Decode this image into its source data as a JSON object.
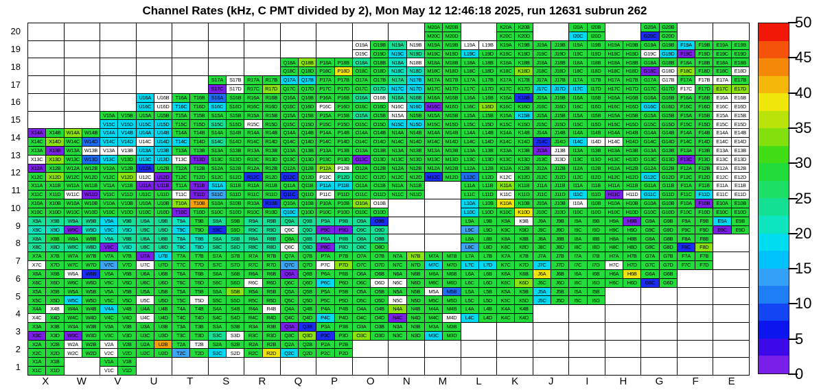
{
  "title": "Channel Rates (kHz, C PMT divided by 2), Mon May 12 12:46:18 2025, run 12631 subrun 262",
  "chart_data": {
    "type": "heatmap",
    "title": "Channel Rates (kHz, C PMT divided by 2), Mon May 12 12:46:18 2025, run 12631 subrun 262",
    "x_categories": [
      "X",
      "W",
      "V",
      "U",
      "T",
      "S",
      "R",
      "Q",
      "P",
      "O",
      "N",
      "M",
      "L",
      "K",
      "J",
      "I",
      "H",
      "G",
      "F",
      "E"
    ],
    "y_categories": [
      20,
      19,
      18,
      17,
      16,
      15,
      14,
      13,
      12,
      11,
      10,
      9,
      8,
      7,
      6,
      5,
      4,
      3,
      2,
      1
    ],
    "sublabels": [
      "A",
      "B",
      "C",
      "D"
    ],
    "cell_layout": "A top-left, B top-right, C bottom-left, D bottom-right; label = column letter + row number + sublabel",
    "value_scale": {
      "min": 0,
      "max": 50,
      "unit": "kHz"
    },
    "code_values": {
      "W": 0,
      "P": 2,
      "B": 7,
      "M": 11,
      "S": 13,
      "C": 18,
      "t": 21,
      "c": 24,
      "G": 28,
      "g": 34,
      "Y": 39,
      "O": 44
    },
    "code_colors": {
      "W": "#ffffff",
      "P": "#7a1fe8",
      "B": "#1b2df2",
      "M": "#1e6ef5",
      "S": "#3ba6f5",
      "C": "#00d9f2",
      "t": "#0de5c0",
      "c": "#16e295",
      "G": "#22dc3a",
      "g": "#8ae30e",
      "Y": "#efe40b",
      "O": "#f5a007"
    },
    "absent_code": "....",
    "rows": {
      "20": [
        "....",
        "....",
        "....",
        "....",
        "....",
        "....",
        "....",
        "....",
        "....",
        "....",
        "....",
        "GGGG",
        "....",
        "GGGG",
        "....",
        "GGCG",
        "....",
        "GGBG",
        "....",
        "...."
      ],
      "19": [
        "....",
        "....",
        "....",
        "....",
        "....",
        "....",
        "....",
        "....",
        "....",
        "WGWG",
        "cWCc",
        "GGGG",
        "WWCG",
        "GGGG",
        "GGGG",
        "GGGG",
        "GGGG",
        "GGWC",
        "CGPG",
        "GGGG"
      ],
      "18": [
        "....",
        "....",
        "....",
        "....",
        "....",
        "....",
        "....",
        "GgGG",
        "GGGY",
        "cGGG",
        "tWtt",
        "GGGG",
        "GGGG",
        "GGGg",
        "GGGG",
        "GGGG",
        "GGGG",
        "GGPW",
        "GGgG",
        "GGGW"
      ],
      "17": [
        "....",
        "....",
        "....",
        "....",
        "....",
        "GWPW",
        "GGGg",
        "CCGG",
        "GGGG",
        "GGGc",
        "cCCC",
        "GGGG",
        "GGGG",
        "GGGG",
        "GGCC",
        "GGCG",
        "GGGG",
        "GWGG",
        "GWWG",
        "WGgg"
      ],
      "16": [
        "....",
        "....",
        "....",
        "CWCW",
        "GGCG",
        "MGCG",
        "GGGG",
        "GGGG",
        "GGWG",
        "cWGG",
        "ccWC",
        "GGPG",
        "GGGg",
        "GBGG",
        "GGGG",
        "GGGG",
        "GGGG",
        "GGCG",
        "GGGG",
        "WWWW"
      ],
      "15": [
        "....",
        "....",
        "GGCC",
        "GGCC",
        "GGGG",
        "GGcG",
        "GGWG",
        "GGGG",
        "GGGG",
        "cGGG",
        "WGCC",
        "GGGG",
        "GGGG",
        "GCGG",
        "GGGG",
        "GGGG",
        "GGGG",
        "GGGG",
        "GGGG",
        "WWWW"
      ],
      "14": [
        "PGGg",
        "gGGM",
        "CCCC",
        "CCWC",
        "GGCG",
        "GGcG",
        "GGGG",
        "GGGG",
        "GGGG",
        "GGGG",
        "GGGG",
        "GGGG",
        "GGGG",
        "GGGG",
        "GGBG",
        "GGCW",
        "GGWG",
        "GGGG",
        "GGGG",
        "WWWW"
      ],
      "13": [
        "GPWg",
        "GWGM",
        "WWCG",
        "CCCC",
        "GGWP",
        "GGGG",
        "GGGG",
        "GGGG",
        "GGGG",
        "GGPG",
        "GGGG",
        "GGGG",
        "GGGG",
        "GGGG",
        "PWGW",
        "GGGG",
        "GGGG",
        "GGGG",
        "GGPG",
        "WWWW"
      ],
      "12": [
        "PGGg",
        "GGGG",
        "GGGg",
        "BGWP",
        "GGGG",
        "GGGG",
        "GGBG",
        "GGBG",
        "gWWc",
        "GGGG",
        "GGGG",
        "GGBG",
        "GGMG",
        "GGWG",
        "GGGG",
        "GGGG",
        "GGGG",
        "GGCG",
        "GGGG",
        "WWWW"
      ],
      "11": [
        "GGGG",
        "GGWP",
        "GGGG",
        "PPGG",
        "GPWP",
        "CGSG",
        "GGGG",
        "GGBG",
        "CCWG",
        "GGGG",
        "GGGG",
        "....",
        "GGGG",
        "gGWG",
        "GGGG",
        "GGCG",
        "GGPW",
        "GGCG",
        "GGGC",
        "WWWW"
      ],
      "10": [
        "GGGG",
        "GGGG",
        "GGGG",
        "GGGG",
        "gOPG",
        "GGGG",
        "GBGG",
        "GGCG",
        "GGGG",
        "gWGG",
        "....",
        "....",
        "CGCG",
        "YGGY",
        "GGGG",
        "WGGG",
        "GGGG",
        "GGGG",
        "GPGG",
        "GGGG"
      ],
      "9": [
        "cctt",
        "ccPt",
        "CcCt",
        "cccc",
        "tGCG",
        "cGBG",
        "cccc",
        "ccWc",
        "ccPP",
        "cBcc",
        "....",
        "....",
        "GGSG",
        "GWGG",
        "GGGG",
        "GGGG",
        "GPGG",
        "GGGG",
        "GGGG",
        "CGPG"
      ],
      "8": [
        "cGcc",
        "GGcc",
        "tcPt",
        "cccc",
        "tttt",
        "cccc",
        "cccc",
        "GcWc",
        "ccPc",
        "cccG",
        "....",
        "....",
        "GGSG",
        "GGGG",
        "GGGG",
        "GGGG",
        "GGGG",
        "GGGG",
        "GGBg",
        "...."
      ],
      "7": [
        "GGWG",
        "GGGG",
        "GGSG",
        "PCWG",
        "GGGG",
        "GGGG",
        "GGGG",
        "GGSG",
        "GGWg",
        "GGGG",
        "GgGG",
        "GGCG",
        "GGCC",
        "GGGG",
        "GGCG",
        "GGGG",
        "GGWG",
        "GGGG",
        "GGGG",
        "...."
      ],
      "6": [
        "GGGG",
        "WBGG",
        "GGGG",
        "GGGG",
        "GGGG",
        "GGGG",
        "GGWG",
        "PGGG",
        "GGCG",
        "GGGW",
        "GGWG",
        "GGGG",
        "GGGG",
        "GGGg",
        "YGGG",
        "GGGG",
        "GYGG",
        "GGBG",
        "....",
        "...."
      ],
      "5": [
        "GGGG",
        "GGCG",
        "GGGG",
        "GGWG",
        "GGGW",
        "GgGG",
        "GGGG",
        "GGGG",
        "GGGG",
        "GGGG",
        "GGWG",
        "WMGG",
        "GGGG",
        "GGGG",
        "CGCG",
        "GGGG",
        "....",
        "....",
        "....",
        "...."
      ],
      "4": [
        "GWWG",
        "GGGG",
        "CGGG",
        "GGWG",
        "GGGG",
        "GGGG",
        "GWGG",
        "GGGG",
        "GGCG",
        "GGGG",
        "gGPG",
        "GGGW",
        "GGCG",
        "GGGG",
        "....",
        "....",
        "....",
        "....",
        "....",
        "...."
      ],
      "3": [
        "GGPG",
        "GGPG",
        "GGGG",
        "GGGG",
        "GGGG",
        "GGcW",
        "GGGG",
        "PBGg",
        "GGBG",
        "GGgG",
        "GGGG",
        "GGCG",
        "....",
        "....",
        "....",
        "....",
        "....",
        "....",
        "....",
        "...."
      ],
      "2": [
        "GGGG",
        "WGWG",
        "WGWG",
        "GOGG",
        "GWSG",
        "GGCW",
        "GGGY",
        "GGCG",
        "GGGG",
        "....",
        "....",
        "....",
        "....",
        "....",
        "....",
        "....",
        "....",
        "....",
        "....",
        "...."
      ],
      "1": [
        "GGGG",
        "....",
        "GGWG",
        "....",
        "....",
        "....",
        "....",
        "....",
        "....",
        "....",
        "....",
        "....",
        "....",
        "....",
        "....",
        "....",
        "....",
        "....",
        "....",
        "...."
      ]
    },
    "colorbar": {
      "position": "right",
      "ticks": [
        50,
        45,
        40,
        35,
        30,
        25,
        20,
        15,
        10,
        5,
        0
      ],
      "bands_top_to_bottom": [
        "#f21807",
        "#f55309",
        "#f58709",
        "#f5b80a",
        "#f0e60b",
        "#b9e309",
        "#84e00c",
        "#43dd17",
        "#22dc3a",
        "#1cdf66",
        "#14e093",
        "#0de5c0",
        "#00dcf0",
        "#00c2fa",
        "#33a1f5",
        "#1e7ef5",
        "#1246f5",
        "#0b16ee",
        "#3c0ae8",
        "#7a1fe8"
      ]
    },
    "grid_lines": true,
    "legend": "none"
  }
}
